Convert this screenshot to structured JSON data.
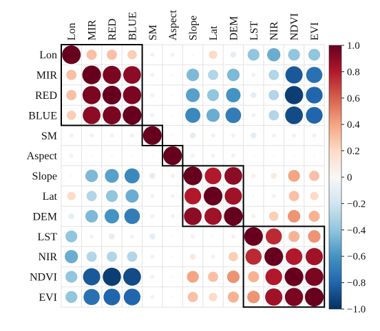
{
  "chart_data": {
    "type": "heatmap",
    "title": "",
    "xlabel": "",
    "ylabel": "",
    "variables": [
      "Lon",
      "MIR",
      "RED",
      "BLUE",
      "SM",
      "Aspect",
      "Slope",
      "Lat",
      "DEM",
      "LST",
      "NIR",
      "NDVI",
      "EVI"
    ],
    "matrix": [
      [
        1.0,
        0.3,
        0.3,
        0.25,
        0.05,
        0.05,
        0.0,
        0.2,
        -0.1,
        -0.4,
        -0.5,
        -0.4,
        -0.4
      ],
      [
        0.3,
        1.0,
        0.95,
        0.9,
        -0.05,
        0.0,
        -0.45,
        -0.3,
        -0.45,
        -0.05,
        -0.3,
        -0.85,
        -0.75
      ],
      [
        0.3,
        0.95,
        1.0,
        0.95,
        -0.05,
        0.0,
        -0.55,
        -0.4,
        -0.6,
        -0.1,
        -0.3,
        -0.95,
        -0.8
      ],
      [
        0.25,
        0.9,
        0.95,
        1.0,
        -0.05,
        0.0,
        -0.65,
        -0.5,
        -0.7,
        -0.05,
        -0.3,
        -0.9,
        -0.8
      ],
      [
        0.05,
        -0.05,
        -0.05,
        -0.05,
        1.0,
        0.0,
        -0.1,
        -0.05,
        -0.05,
        -0.1,
        -0.05,
        0.05,
        0.05
      ],
      [
        0.05,
        0.0,
        0.0,
        0.0,
        0.0,
        1.0,
        0.05,
        0.05,
        0.05,
        0.0,
        0.0,
        0.0,
        0.0
      ],
      [
        0.0,
        -0.45,
        -0.55,
        -0.65,
        -0.1,
        0.05,
        1.0,
        0.8,
        0.9,
        0.05,
        0.1,
        0.4,
        0.3
      ],
      [
        0.2,
        -0.3,
        -0.4,
        -0.5,
        -0.05,
        0.05,
        0.8,
        1.0,
        0.85,
        0.0,
        0.05,
        0.3,
        0.2
      ],
      [
        -0.1,
        -0.45,
        -0.6,
        -0.7,
        -0.05,
        0.05,
        0.9,
        0.85,
        1.0,
        0.05,
        0.25,
        0.45,
        0.35
      ],
      [
        -0.4,
        -0.05,
        -0.1,
        -0.05,
        -0.1,
        0.0,
        0.05,
        0.0,
        0.05,
        1.0,
        0.75,
        0.35,
        0.45
      ],
      [
        -0.5,
        -0.3,
        -0.3,
        -0.3,
        -0.05,
        0.0,
        0.1,
        0.05,
        0.25,
        0.75,
        1.0,
        0.8,
        0.85
      ],
      [
        -0.4,
        -0.85,
        -0.95,
        -0.9,
        0.05,
        0.0,
        0.4,
        0.3,
        0.45,
        0.35,
        0.8,
        1.0,
        0.95
      ],
      [
        -0.4,
        -0.75,
        -0.8,
        -0.8,
        0.05,
        0.0,
        0.3,
        0.2,
        0.35,
        0.45,
        0.85,
        0.95,
        1.0
      ]
    ],
    "highlighted_blocks": [
      [
        "Lon",
        "BLUE"
      ],
      [
        "SM",
        "SM"
      ],
      [
        "Aspect",
        "Aspect"
      ],
      [
        "Slope",
        "DEM"
      ],
      [
        "LST",
        "EVI"
      ]
    ],
    "colorbar": {
      "range": [
        -1.0,
        1.0
      ],
      "tick_labels": [
        "1.0",
        "0.8",
        "0.6",
        "0.4",
        "0.2",
        "0",
        "−0.2",
        "−0.4",
        "−0.6",
        "−0.8",
        "−1.0"
      ],
      "stops": [
        {
          "value": -1.0,
          "color": "#053061"
        },
        {
          "value": -0.8,
          "color": "#2166ac"
        },
        {
          "value": -0.6,
          "color": "#4393c3"
        },
        {
          "value": -0.4,
          "color": "#92c5de"
        },
        {
          "value": -0.2,
          "color": "#d1e5f0"
        },
        {
          "value": 0.0,
          "color": "#f7f7f7"
        },
        {
          "value": 0.2,
          "color": "#fddbc7"
        },
        {
          "value": 0.4,
          "color": "#f4a582"
        },
        {
          "value": 0.6,
          "color": "#d6604d"
        },
        {
          "value": 0.8,
          "color": "#b2182b"
        },
        {
          "value": 1.0,
          "color": "#67001f"
        }
      ]
    },
    "legend_placement": "right",
    "grid": true,
    "marker": "circle"
  }
}
